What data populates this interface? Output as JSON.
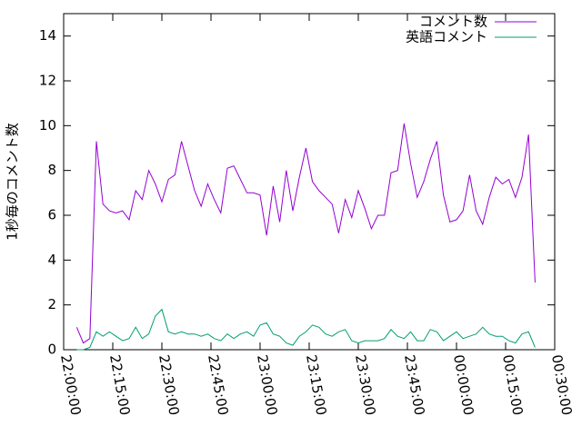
{
  "chart_data": {
    "type": "line",
    "ylabel": "1秒毎のコメント数",
    "x": [
      "22:04:00",
      "22:06:00",
      "22:08:00",
      "22:10:00",
      "22:12:00",
      "22:14:00",
      "22:16:00",
      "22:18:00",
      "22:20:00",
      "22:22:00",
      "22:24:00",
      "22:26:00",
      "22:28:00",
      "22:30:00",
      "22:32:00",
      "22:34:00",
      "22:36:00",
      "22:38:00",
      "22:40:00",
      "22:42:00",
      "22:44:00",
      "22:46:00",
      "22:48:00",
      "22:50:00",
      "22:52:00",
      "22:54:00",
      "22:56:00",
      "22:58:00",
      "23:00:00",
      "23:02:00",
      "23:04:00",
      "23:06:00",
      "23:08:00",
      "23:10:00",
      "23:12:00",
      "23:14:00",
      "23:16:00",
      "23:18:00",
      "23:20:00",
      "23:22:00",
      "23:24:00",
      "23:26:00",
      "23:28:00",
      "23:30:00",
      "23:32:00",
      "23:34:00",
      "23:36:00",
      "23:38:00",
      "23:40:00",
      "23:42:00",
      "23:44:00",
      "23:46:00",
      "23:48:00",
      "23:50:00",
      "23:52:00",
      "23:54:00",
      "23:56:00",
      "23:58:00",
      "00:00:00",
      "00:02:00",
      "00:04:00",
      "00:06:00",
      "00:08:00",
      "00:10:00",
      "00:12:00",
      "00:14:00",
      "00:16:00",
      "00:18:00",
      "00:20:00",
      "00:22:00",
      "00:24:00"
    ],
    "series": [
      {
        "name": "コメント数",
        "color": "#9400d3",
        "values": [
          1.0,
          0.3,
          0.5,
          9.3,
          6.5,
          6.2,
          6.1,
          6.2,
          5.8,
          7.1,
          6.7,
          8.0,
          7.4,
          6.6,
          7.6,
          7.8,
          9.3,
          8.2,
          7.1,
          6.4,
          7.4,
          6.7,
          6.1,
          8.1,
          8.2,
          7.6,
          7.0,
          7.0,
          6.9,
          5.1,
          7.3,
          5.7,
          8.0,
          6.2,
          7.7,
          9.0,
          7.5,
          7.1,
          6.8,
          6.5,
          5.2,
          6.7,
          5.9,
          7.1,
          6.3,
          5.4,
          6.0,
          6.0,
          7.9,
          8.0,
          10.1,
          8.3,
          6.8,
          7.5,
          8.5,
          9.3,
          6.9,
          5.7,
          5.8,
          6.2,
          7.8,
          6.2,
          5.6,
          6.8,
          7.7,
          7.4,
          7.6,
          6.8,
          7.7,
          9.6,
          3.0
        ]
      },
      {
        "name": "英語コメント",
        "color": "#009e73",
        "values": [
          0.0,
          0.0,
          0.1,
          0.8,
          0.6,
          0.8,
          0.6,
          0.4,
          0.5,
          1.0,
          0.5,
          0.7,
          1.5,
          1.8,
          0.8,
          0.7,
          0.8,
          0.7,
          0.7,
          0.6,
          0.7,
          0.5,
          0.4,
          0.7,
          0.5,
          0.7,
          0.8,
          0.6,
          1.1,
          1.2,
          0.7,
          0.6,
          0.3,
          0.2,
          0.6,
          0.8,
          1.1,
          1.0,
          0.7,
          0.6,
          0.8,
          0.9,
          0.4,
          0.3,
          0.4,
          0.4,
          0.4,
          0.5,
          0.9,
          0.6,
          0.5,
          0.8,
          0.4,
          0.4,
          0.9,
          0.8,
          0.4,
          0.6,
          0.8,
          0.5,
          0.6,
          0.7,
          1.0,
          0.7,
          0.6,
          0.6,
          0.4,
          0.3,
          0.7,
          0.8,
          0.1
        ]
      }
    ],
    "xlim": [
      "22:00:00",
      "00:30:00"
    ],
    "xticks": [
      "22:00:00",
      "22:15:00",
      "22:30:00",
      "22:45:00",
      "23:00:00",
      "23:15:00",
      "23:30:00",
      "23:45:00",
      "00:00:00",
      "00:15:00",
      "00:30:00"
    ],
    "ylim": [
      0,
      15
    ],
    "yticks": [
      0,
      2,
      4,
      6,
      8,
      10,
      12,
      14
    ],
    "legend": "top-right"
  }
}
